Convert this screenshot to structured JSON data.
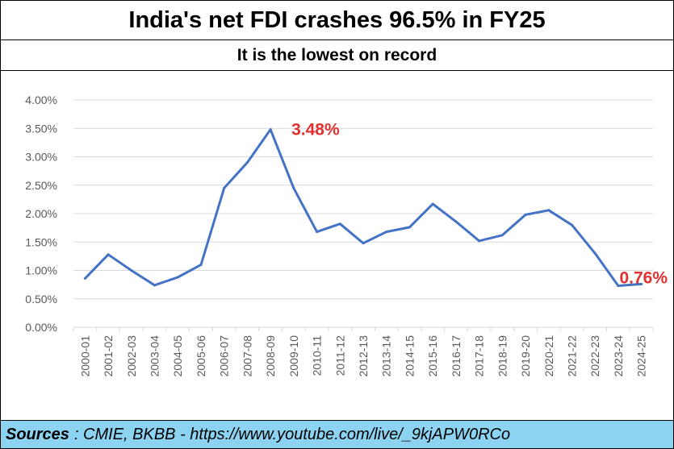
{
  "title": "India's net FDI crashes 96.5% in FY25",
  "subtitle": "It is the lowest on record",
  "source": {
    "label": "Sources",
    "text": ": CMIE, BKBB - https://www.youtube.com/live/_9kjAPW0RCo"
  },
  "colors": {
    "line": "#4472c4",
    "annotation": "#e03030",
    "source_bg": "#8cd3f2",
    "grid": "#d9d9d9"
  },
  "chart_data": {
    "type": "line",
    "title": "",
    "xlabel": "",
    "ylabel": "",
    "ylim": [
      0,
      4
    ],
    "grid": true,
    "y_ticks": [
      "0.00%",
      "0.50%",
      "1.00%",
      "1.50%",
      "2.00%",
      "2.50%",
      "3.00%",
      "3.50%",
      "4.00%"
    ],
    "categories": [
      "2000-01",
      "2001-02",
      "2002-03",
      "2003-04",
      "2004-05",
      "2005-06",
      "2006-07",
      "2007-08",
      "2008-09",
      "2009-10",
      "2010-11",
      "2011-12",
      "2012-13",
      "2013-14",
      "2014-15",
      "2015-16",
      "2016-17",
      "2017-18",
      "2018-19",
      "2019-20",
      "2020-21",
      "2021-22",
      "2022-23",
      "2023-24",
      "2024-25"
    ],
    "values": [
      0.86,
      1.28,
      1.0,
      0.74,
      0.88,
      1.1,
      2.45,
      2.9,
      3.48,
      2.45,
      1.68,
      1.82,
      1.48,
      1.68,
      1.76,
      2.17,
      1.86,
      1.52,
      1.62,
      1.98,
      2.06,
      1.8,
      1.3,
      0.73,
      0.76
    ],
    "annotations": [
      {
        "index": 8,
        "text": "3.48%"
      },
      {
        "index": 24,
        "text": "0.76%"
      }
    ]
  }
}
